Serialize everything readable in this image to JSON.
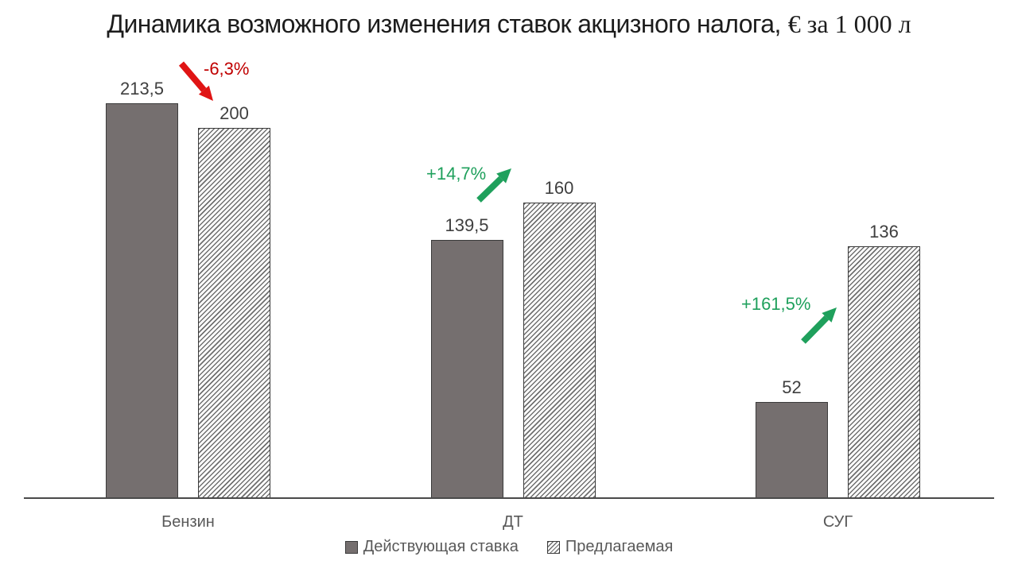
{
  "title": {
    "main": "Динамика возможного изменения ставок акцизного налога,",
    "unit": "€ за 1 000 л"
  },
  "chart_data": {
    "type": "bar",
    "title": "Динамика возможного изменения ставок акцизного налога, € за 1 000 л",
    "categories": [
      "Бензин",
      "ДТ",
      "СУГ"
    ],
    "series": [
      {
        "name": "Действующая ставка",
        "style": "solid",
        "fill": "#756f6f",
        "values": [
          213.5,
          139.5,
          52
        ],
        "labels": [
          "213,5",
          "139,5",
          "52"
        ]
      },
      {
        "name": "Предлагаемая",
        "style": "hatched",
        "fill": "diagonal-hatch-on-white",
        "values": [
          200,
          160,
          136
        ],
        "labels": [
          "200",
          "160",
          "136"
        ]
      }
    ],
    "changes": [
      {
        "label": "-6,3%",
        "direction": "down",
        "arrow_color": "#e01414",
        "text_color": "#c00000"
      },
      {
        "label": "+14,7%",
        "direction": "up",
        "arrow_color": "#1fa05c",
        "text_color": "#1fa05c"
      },
      {
        "label": "+161,5%",
        "direction": "up",
        "arrow_color": "#1fa05c",
        "text_color": "#1fa05c"
      }
    ],
    "ylim": [
      0,
      213.5
    ],
    "grid": false,
    "y_axis_visible": false,
    "legend_position": "bottom"
  }
}
